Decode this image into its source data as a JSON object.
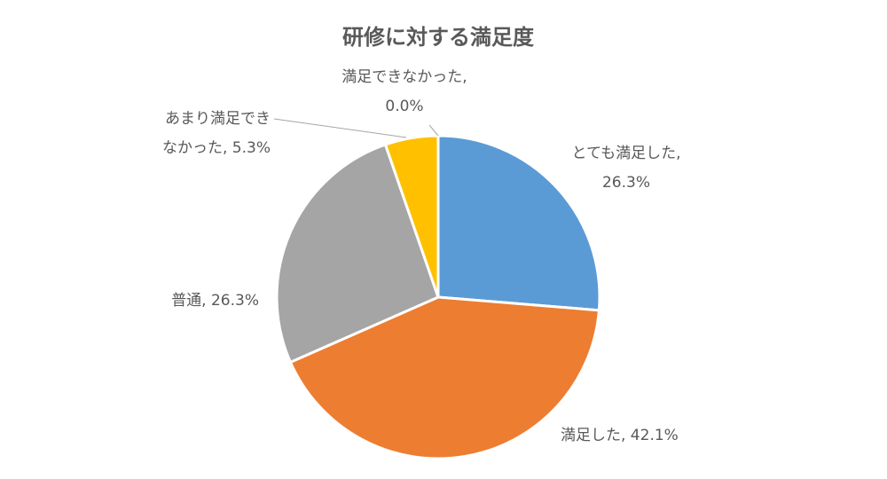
{
  "chart_data": {
    "type": "pie",
    "title": "研修に対する満足度",
    "slices": [
      {
        "label": "とても満足した",
        "value": 26.3,
        "display": "26.3%",
        "color": "#5B9BD5"
      },
      {
        "label": "満足した",
        "value": 42.1,
        "display": "42.1%",
        "color": "#ED7D31"
      },
      {
        "label": "普通",
        "value": 26.3,
        "display": "26.3%",
        "color": "#A5A5A5"
      },
      {
        "label": "あまり満足できなかった",
        "value": 5.3,
        "display": "5.3%",
        "color": "#FFC000"
      },
      {
        "label": "満足できなかった",
        "value": 0.0,
        "display": "0.0%",
        "color": "#4472C4"
      }
    ],
    "data_labels": [
      {
        "lines": [
          "とても満足した,",
          "26.3%"
        ]
      },
      {
        "lines": [
          "満足した, 42.1%"
        ]
      },
      {
        "lines": [
          "普通, 26.3%"
        ]
      },
      {
        "lines": [
          "あまり満足でき",
          "なかった, 5.3%"
        ]
      },
      {
        "lines": [
          "満足できなかった,",
          "0.0%"
        ]
      }
    ],
    "legend": "none"
  }
}
